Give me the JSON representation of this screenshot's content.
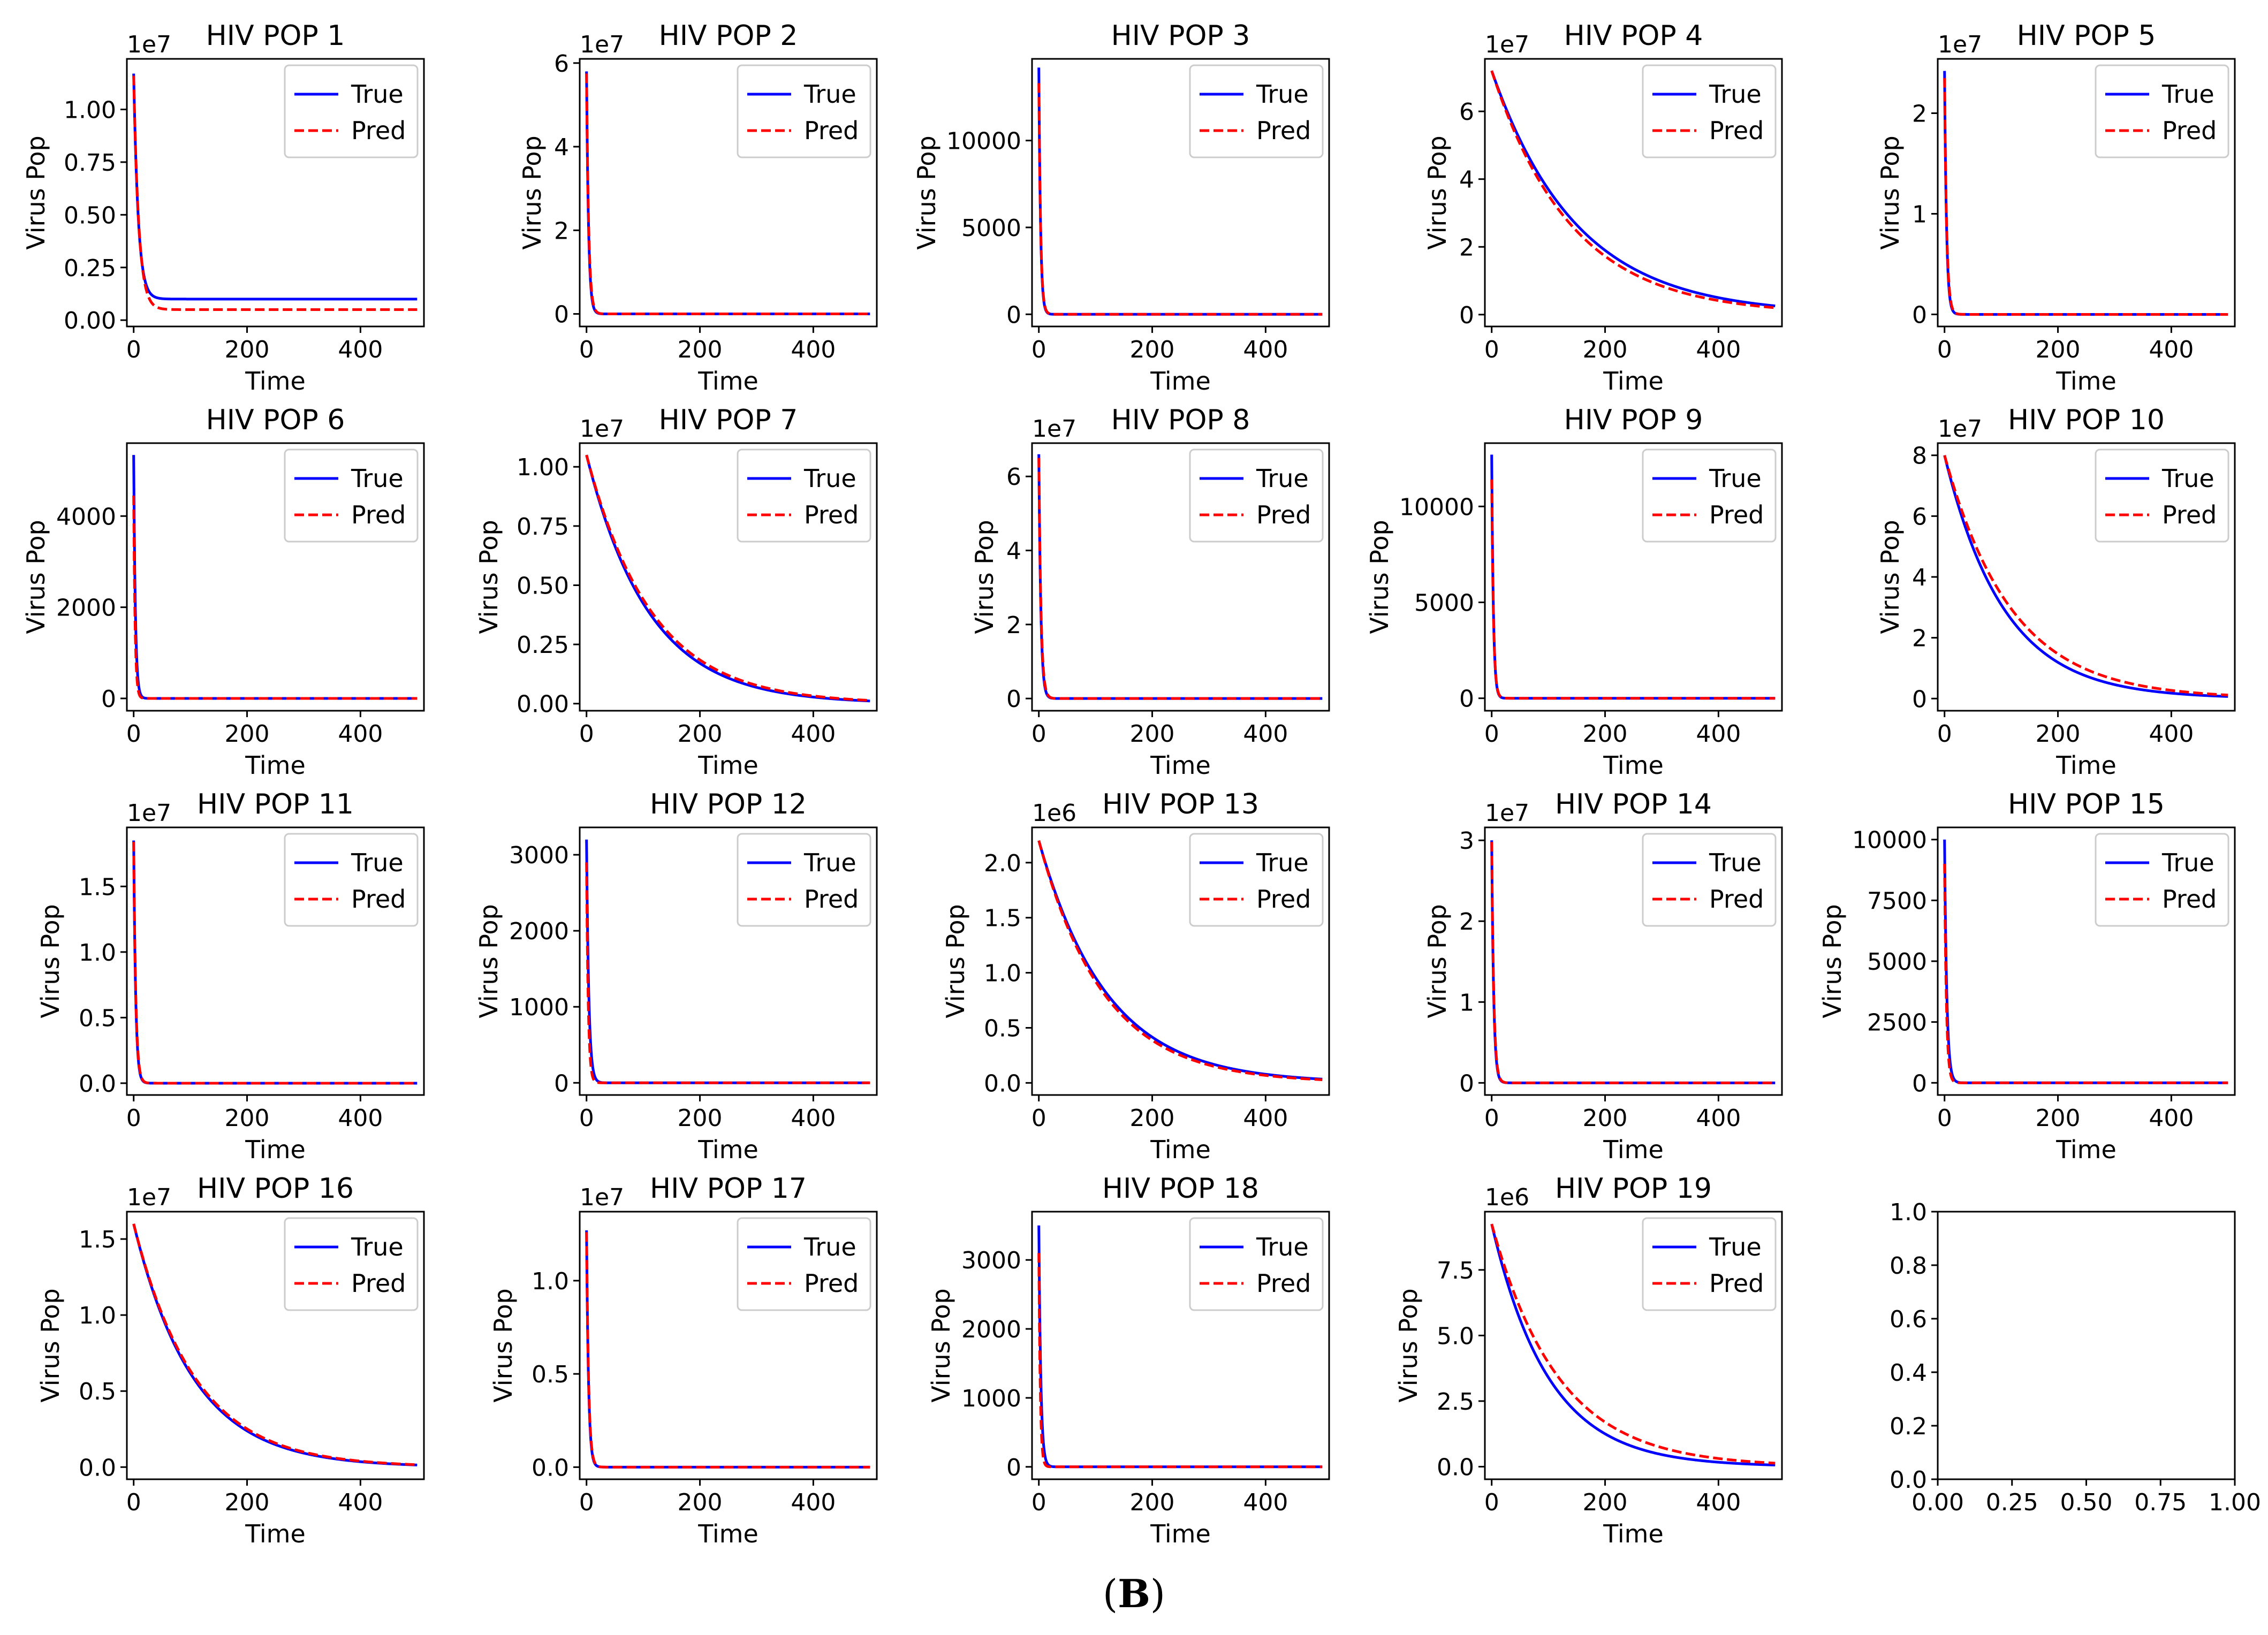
{
  "figure": {
    "caption_open": "(",
    "caption_label": "B",
    "caption_close": ")",
    "x_label": "Time",
    "y_label": "Virus Pop",
    "legend_true": "True",
    "legend_pred": "Pred",
    "true_color": "#0000ff",
    "pred_color": "#ff0000"
  },
  "chart_data": [
    {
      "type": "line",
      "title": "HIV POP 1",
      "offset_text": "1e7",
      "xlabel": "Time",
      "ylabel": "Virus Pop",
      "xlim": [
        -12,
        512
      ],
      "ylim": [
        -0.03,
        1.24
      ],
      "xticks": [
        0,
        200,
        400
      ],
      "yticks": [
        0.0,
        0.25,
        0.5,
        0.75,
        1.0
      ],
      "ytick_labels": [
        "0.00",
        "0.25",
        "0.50",
        "0.75",
        "1.00"
      ],
      "legend": "upper right",
      "series": [
        {
          "name": "True",
          "y0": 1.17,
          "yinf": 0.1,
          "tau": 8
        },
        {
          "name": "Pred",
          "y0": 1.16,
          "yinf": 0.05,
          "tau": 9
        }
      ]
    },
    {
      "type": "line",
      "title": "HIV POP 2",
      "offset_text": "1e7",
      "xlabel": "Time",
      "ylabel": "Virus Pop",
      "xlim": [
        -12,
        512
      ],
      "ylim": [
        -0.3,
        6.1
      ],
      "xticks": [
        0,
        200,
        400
      ],
      "yticks": [
        0,
        2,
        4,
        6
      ],
      "ytick_labels": [
        "0",
        "2",
        "4",
        "6"
      ],
      "legend": "upper right",
      "series": [
        {
          "name": "True",
          "y0": 5.8,
          "yinf": 0,
          "tau": 3.5
        },
        {
          "name": "Pred",
          "y0": 5.75,
          "yinf": 0,
          "tau": 3.8
        }
      ]
    },
    {
      "type": "line",
      "title": "HIV POP 3",
      "offset_text": "",
      "xlabel": "Time",
      "ylabel": "Virus Pop",
      "xlim": [
        -12,
        512
      ],
      "ylim": [
        -700,
        14700
      ],
      "xticks": [
        0,
        200,
        400
      ],
      "yticks": [
        0,
        5000,
        10000
      ],
      "ytick_labels": [
        "0",
        "5000",
        "10000"
      ],
      "legend": "upper right",
      "series": [
        {
          "name": "True",
          "y0": 14200,
          "yinf": 0,
          "tau": 3
        },
        {
          "name": "Pred",
          "y0": 13300,
          "yinf": 0,
          "tau": 3.2
        }
      ]
    },
    {
      "type": "line",
      "title": "HIV POP 4",
      "offset_text": "1e7",
      "xlabel": "Time",
      "ylabel": "Virus Pop",
      "xlim": [
        -12,
        512
      ],
      "ylim": [
        -0.35,
        7.55
      ],
      "xticks": [
        0,
        200,
        400
      ],
      "yticks": [
        0,
        2,
        4,
        6
      ],
      "ytick_labels": [
        "0",
        "2",
        "4",
        "6"
      ],
      "legend": "upper right",
      "series": [
        {
          "name": "True",
          "y0": 7.2,
          "yinf": 0,
          "tau": 150
        },
        {
          "name": "Pred",
          "y0": 7.2,
          "yinf": 0,
          "tau": 140
        }
      ]
    },
    {
      "type": "line",
      "title": "HIV POP 5",
      "offset_text": "1e7",
      "xlabel": "Time",
      "ylabel": "Virus Pop",
      "xlim": [
        -12,
        512
      ],
      "ylim": [
        -0.12,
        2.54
      ],
      "xticks": [
        0,
        200,
        400
      ],
      "yticks": [
        0,
        1,
        2
      ],
      "ytick_labels": [
        "0",
        "1",
        "2"
      ],
      "legend": "upper right",
      "series": [
        {
          "name": "True",
          "y0": 2.42,
          "yinf": 0,
          "tau": 3.5
        },
        {
          "name": "Pred",
          "y0": 2.35,
          "yinf": 0,
          "tau": 3.8
        }
      ]
    },
    {
      "type": "line",
      "title": "HIV POP 6",
      "offset_text": "",
      "xlabel": "Time",
      "ylabel": "Virus Pop",
      "xlim": [
        -12,
        512
      ],
      "ylim": [
        -270,
        5600
      ],
      "xticks": [
        0,
        200,
        400
      ],
      "yticks": [
        0,
        2000,
        4000
      ],
      "ytick_labels": [
        "0",
        "2000",
        "4000"
      ],
      "legend": "upper right",
      "series": [
        {
          "name": "True",
          "y0": 5340,
          "yinf": 0,
          "tau": 3
        },
        {
          "name": "Pred",
          "y0": 4450,
          "yinf": 0,
          "tau": 2.5
        }
      ]
    },
    {
      "type": "line",
      "title": "HIV POP 7",
      "offset_text": "1e7",
      "xlabel": "Time",
      "ylabel": "Virus Pop",
      "xlim": [
        -12,
        512
      ],
      "ylim": [
        -0.03,
        1.1
      ],
      "xticks": [
        0,
        200,
        400
      ],
      "yticks": [
        0.0,
        0.25,
        0.5,
        0.75,
        1.0
      ],
      "ytick_labels": [
        "0.00",
        "0.25",
        "0.50",
        "0.75",
        "1.00"
      ],
      "legend": "upper right",
      "series": [
        {
          "name": "True",
          "y0": 1.05,
          "yinf": 0,
          "tau": 110
        },
        {
          "name": "Pred",
          "y0": 1.05,
          "yinf": 0,
          "tau": 115
        }
      ]
    },
    {
      "type": "line",
      "title": "HIV POP 8",
      "offset_text": "1e7",
      "xlabel": "Time",
      "ylabel": "Virus Pop",
      "xlim": [
        -12,
        512
      ],
      "ylim": [
        -0.33,
        6.9
      ],
      "xticks": [
        0,
        200,
        400
      ],
      "yticks": [
        0,
        2,
        4,
        6
      ],
      "ytick_labels": [
        "0",
        "2",
        "4",
        "6"
      ],
      "legend": "upper right",
      "series": [
        {
          "name": "True",
          "y0": 6.6,
          "yinf": 0,
          "tau": 3.5
        },
        {
          "name": "Pred",
          "y0": 6.5,
          "yinf": 0,
          "tau": 3.8
        }
      ]
    },
    {
      "type": "line",
      "title": "HIV POP 9",
      "offset_text": "",
      "xlabel": "Time",
      "ylabel": "Virus Pop",
      "xlim": [
        -12,
        512
      ],
      "ylim": [
        -650,
        13300
      ],
      "xticks": [
        0,
        200,
        400
      ],
      "yticks": [
        0,
        5000,
        10000
      ],
      "ytick_labels": [
        "0",
        "5000",
        "10000"
      ],
      "legend": "upper right",
      "series": [
        {
          "name": "True",
          "y0": 12700,
          "yinf": 0,
          "tau": 3
        },
        {
          "name": "Pred",
          "y0": 11400,
          "yinf": 0,
          "tau": 3.2
        }
      ]
    },
    {
      "type": "line",
      "title": "HIV POP 10",
      "offset_text": "1e7",
      "xlabel": "Time",
      "ylabel": "Virus Pop",
      "xlim": [
        -12,
        512
      ],
      "ylim": [
        -0.4,
        8.4
      ],
      "xticks": [
        0,
        200,
        400
      ],
      "yticks": [
        0,
        2,
        4,
        6,
        8
      ],
      "ytick_labels": [
        "0",
        "2",
        "4",
        "6",
        "8"
      ],
      "legend": "upper right",
      "series": [
        {
          "name": "True",
          "y0": 8.0,
          "yinf": 0,
          "tau": 105
        },
        {
          "name": "Pred",
          "y0": 8.0,
          "yinf": 0,
          "tau": 118
        }
      ]
    },
    {
      "type": "line",
      "title": "HIV POP 11",
      "offset_text": "1e7",
      "xlabel": "Time",
      "ylabel": "Virus Pop",
      "xlim": [
        -12,
        512
      ],
      "ylim": [
        -0.09,
        1.95
      ],
      "xticks": [
        0,
        200,
        400
      ],
      "yticks": [
        0.0,
        0.5,
        1.0,
        1.5
      ],
      "ytick_labels": [
        "0.0",
        "0.5",
        "1.0",
        "1.5"
      ],
      "legend": "upper right",
      "series": [
        {
          "name": "True",
          "y0": 1.85,
          "yinf": 0,
          "tau": 3.5
        },
        {
          "name": "Pred",
          "y0": 1.84,
          "yinf": 0,
          "tau": 3.7
        }
      ]
    },
    {
      "type": "line",
      "title": "HIV POP 12",
      "offset_text": "",
      "xlabel": "Time",
      "ylabel": "Virus Pop",
      "xlim": [
        -12,
        512
      ],
      "ylim": [
        -160,
        3360
      ],
      "xticks": [
        0,
        200,
        400
      ],
      "yticks": [
        0,
        1000,
        2000,
        3000
      ],
      "ytick_labels": [
        "0",
        "1000",
        "2000",
        "3000"
      ],
      "legend": "upper right",
      "series": [
        {
          "name": "True",
          "y0": 3200,
          "yinf": 0,
          "tau": 4
        },
        {
          "name": "Pred",
          "y0": 2900,
          "yinf": 0,
          "tau": 3
        }
      ]
    },
    {
      "type": "line",
      "title": "HIV POP 13",
      "offset_text": "1e6",
      "xlabel": "Time",
      "ylabel": "Virus Pop",
      "xlim": [
        -12,
        512
      ],
      "ylim": [
        -0.11,
        2.32
      ],
      "xticks": [
        0,
        200,
        400
      ],
      "yticks": [
        0.0,
        0.5,
        1.0,
        1.5,
        2.0
      ],
      "ytick_labels": [
        "0.0",
        "0.5",
        "1.0",
        "1.5",
        "2.0"
      ],
      "legend": "upper right",
      "series": [
        {
          "name": "True",
          "y0": 2.2,
          "yinf": 0,
          "tau": 120
        },
        {
          "name": "Pred",
          "y0": 2.2,
          "yinf": 0,
          "tau": 115
        }
      ]
    },
    {
      "type": "line",
      "title": "HIV POP 14",
      "offset_text": "1e7",
      "xlabel": "Time",
      "ylabel": "Virus Pop",
      "xlim": [
        -12,
        512
      ],
      "ylim": [
        -0.15,
        3.16
      ],
      "xticks": [
        0,
        200,
        400
      ],
      "yticks": [
        0,
        1,
        2,
        3
      ],
      "ytick_labels": [
        "0",
        "1",
        "2",
        "3"
      ],
      "legend": "upper right",
      "series": [
        {
          "name": "True",
          "y0": 3.0,
          "yinf": 0,
          "tau": 3.5
        },
        {
          "name": "Pred",
          "y0": 2.98,
          "yinf": 0,
          "tau": 3.7
        }
      ]
    },
    {
      "type": "line",
      "title": "HIV POP 15",
      "offset_text": "",
      "xlabel": "Time",
      "ylabel": "Virus Pop",
      "xlim": [
        -12,
        512
      ],
      "ylim": [
        -500,
        10500
      ],
      "xticks": [
        0,
        200,
        400
      ],
      "yticks": [
        0,
        2500,
        5000,
        7500,
        10000
      ],
      "ytick_labels": [
        "0",
        "2500",
        "5000",
        "7500",
        "10000"
      ],
      "legend": "upper right",
      "series": [
        {
          "name": "True",
          "y0": 10000,
          "yinf": 0,
          "tau": 4
        },
        {
          "name": "Pred",
          "y0": 9000,
          "yinf": 0,
          "tau": 3.3
        }
      ]
    },
    {
      "type": "line",
      "title": "HIV POP 16",
      "offset_text": "1e7",
      "xlabel": "Time",
      "ylabel": "Virus Pop",
      "xlim": [
        -12,
        512
      ],
      "ylim": [
        -0.08,
        1.68
      ],
      "xticks": [
        0,
        200,
        400
      ],
      "yticks": [
        0.0,
        0.5,
        1.0,
        1.5
      ],
      "ytick_labels": [
        "0.0",
        "0.5",
        "1.0",
        "1.5"
      ],
      "legend": "upper right",
      "series": [
        {
          "name": "True",
          "y0": 1.6,
          "yinf": 0,
          "tau": 105
        },
        {
          "name": "Pred",
          "y0": 1.6,
          "yinf": 0,
          "tau": 108
        }
      ]
    },
    {
      "type": "line",
      "title": "HIV POP 17",
      "offset_text": "1e7",
      "xlabel": "Time",
      "ylabel": "Virus Pop",
      "xlim": [
        -12,
        512
      ],
      "ylim": [
        -0.065,
        1.37
      ],
      "xticks": [
        0,
        200,
        400
      ],
      "yticks": [
        0.0,
        0.5,
        1.0
      ],
      "ytick_labels": [
        "0.0",
        "0.5",
        "1.0"
      ],
      "legend": "upper right",
      "series": [
        {
          "name": "True",
          "y0": 1.27,
          "yinf": 0,
          "tau": 3.5
        },
        {
          "name": "Pred",
          "y0": 1.26,
          "yinf": 0,
          "tau": 3.7
        }
      ]
    },
    {
      "type": "line",
      "title": "HIV POP 18",
      "offset_text": "",
      "xlabel": "Time",
      "ylabel": "Virus Pop",
      "xlim": [
        -12,
        512
      ],
      "ylim": [
        -180,
        3700
      ],
      "xticks": [
        0,
        200,
        400
      ],
      "yticks": [
        0,
        1000,
        2000,
        3000
      ],
      "ytick_labels": [
        "0",
        "1000",
        "2000",
        "3000"
      ],
      "legend": "upper right",
      "series": [
        {
          "name": "True",
          "y0": 3500,
          "yinf": 0,
          "tau": 3.5
        },
        {
          "name": "Pred",
          "y0": 3100,
          "yinf": 0,
          "tau": 2.5
        }
      ]
    },
    {
      "type": "line",
      "title": "HIV POP 19",
      "offset_text": "1e6",
      "xlabel": "Time",
      "ylabel": "Virus Pop",
      "xlim": [
        -12,
        512
      ],
      "ylim": [
        -0.48,
        9.72
      ],
      "xticks": [
        0,
        200,
        400
      ],
      "yticks": [
        0.0,
        2.5,
        5.0,
        7.5
      ],
      "ytick_labels": [
        "0.0",
        "2.5",
        "5.0",
        "7.5"
      ],
      "legend": "upper right",
      "series": [
        {
          "name": "True",
          "y0": 9.25,
          "yinf": 0,
          "tau": 100
        },
        {
          "name": "Pred",
          "y0": 9.25,
          "yinf": 0,
          "tau": 118
        }
      ]
    },
    {
      "type": "empty",
      "title": "",
      "xlim": [
        0,
        1
      ],
      "ylim": [
        0,
        1
      ],
      "xticks": [
        0,
        0.25,
        0.5,
        0.75,
        1.0
      ],
      "xtick_labels": [
        "0.00",
        "0.25",
        "0.50",
        "0.75",
        "1.00"
      ],
      "yticks": [
        0,
        0.2,
        0.4,
        0.6,
        0.8,
        1.0
      ],
      "ytick_labels": [
        "0.0",
        "0.2",
        "0.4",
        "0.6",
        "0.8",
        "1.0"
      ]
    }
  ]
}
